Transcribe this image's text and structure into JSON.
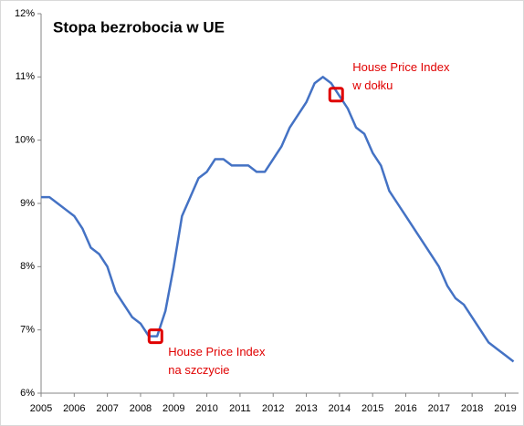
{
  "chart_data": {
    "type": "line",
    "title": "Stopa bezrobocia w UE",
    "x": [
      2005.0,
      2005.25,
      2005.5,
      2005.75,
      2006.0,
      2006.25,
      2006.5,
      2006.75,
      2007.0,
      2007.25,
      2007.5,
      2007.75,
      2008.0,
      2008.25,
      2008.5,
      2008.75,
      2009.0,
      2009.25,
      2009.5,
      2009.75,
      2010.0,
      2010.25,
      2010.5,
      2010.75,
      2011.0,
      2011.25,
      2011.5,
      2011.75,
      2012.0,
      2012.25,
      2012.5,
      2012.75,
      2013.0,
      2013.25,
      2013.5,
      2013.75,
      2014.0,
      2014.25,
      2014.5,
      2014.75,
      2015.0,
      2015.25,
      2015.5,
      2015.75,
      2016.0,
      2016.25,
      2016.5,
      2016.75,
      2017.0,
      2017.25,
      2017.5,
      2017.75,
      2018.0,
      2018.25,
      2018.5,
      2018.75,
      2019.0,
      2019.25
    ],
    "series": [
      {
        "name": "Stopa bezrobocia",
        "color": "#4472c4",
        "values": [
          9.1,
          9.1,
          9.0,
          8.9,
          8.8,
          8.6,
          8.3,
          8.2,
          8.0,
          7.6,
          7.4,
          7.2,
          7.1,
          6.9,
          6.9,
          7.3,
          8.0,
          8.8,
          9.1,
          9.4,
          9.5,
          9.7,
          9.7,
          9.6,
          9.6,
          9.6,
          9.5,
          9.5,
          9.7,
          9.9,
          10.2,
          10.4,
          10.6,
          10.9,
          11.0,
          10.9,
          10.7,
          10.5,
          10.2,
          10.1,
          9.8,
          9.6,
          9.2,
          9.0,
          8.8,
          8.6,
          8.4,
          8.2,
          8.0,
          7.7,
          7.5,
          7.4,
          7.2,
          7.0,
          6.8,
          6.7,
          6.6,
          6.5
        ]
      }
    ],
    "xlim": [
      2005,
      2019.4
    ],
    "xticks": [
      2005,
      2006,
      2007,
      2008,
      2009,
      2010,
      2011,
      2012,
      2013,
      2014,
      2015,
      2016,
      2017,
      2018,
      2019
    ],
    "ylim": [
      6,
      12
    ],
    "yticks": [
      {
        "value": 6,
        "label": "6%"
      },
      {
        "value": 7,
        "label": "7%"
      },
      {
        "value": 8,
        "label": "8%"
      },
      {
        "value": 9,
        "label": "9%"
      },
      {
        "value": 10,
        "label": "10%"
      },
      {
        "value": 11,
        "label": "11%"
      },
      {
        "value": 12,
        "label": "12%"
      }
    ],
    "annotations": [
      {
        "x": 2008.45,
        "y": 6.9,
        "color": "#e00000",
        "lines": [
          "House Price Index",
          "na szczycie"
        ]
      },
      {
        "x": 2013.9,
        "y": 10.72,
        "color": "#e00000",
        "lines": [
          "House Price Index",
          "w dołku"
        ]
      }
    ]
  }
}
